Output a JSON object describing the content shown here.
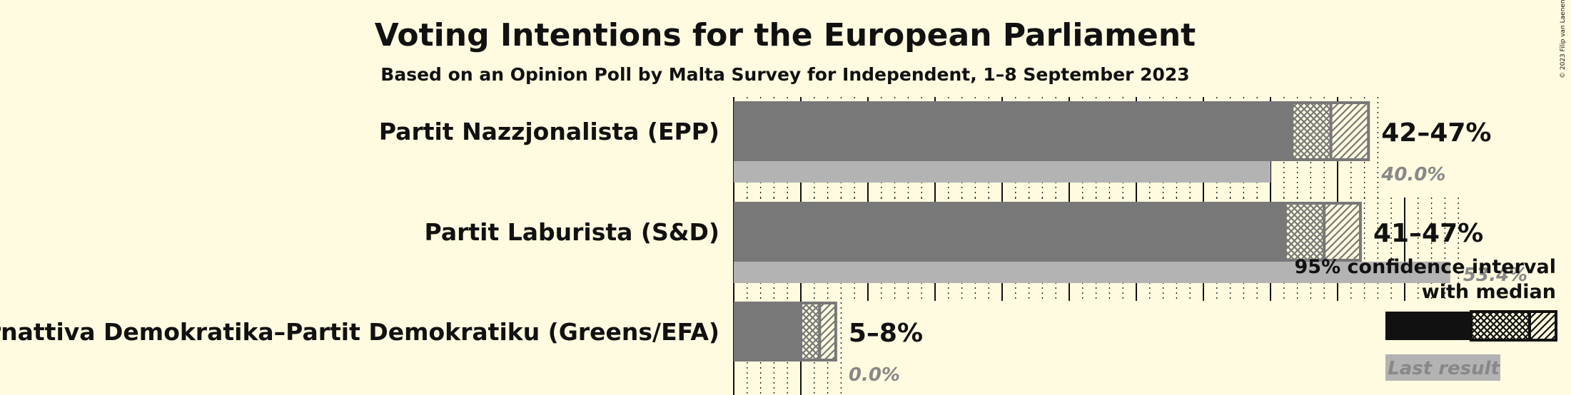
{
  "title": "Voting Intentions for the European Parliament",
  "subtitle": "Based on an Opinion Poll by Malta Survey for Independent, 1–8 September 2023",
  "copyright": "© 2023 Filip van Laenen",
  "colors": {
    "background": "#FFFBE0",
    "bar": "#787878",
    "last_result": "#B3B3B3",
    "legend_bar": "#111111",
    "text": "#111111",
    "muted": "#888888"
  },
  "chart_data": {
    "type": "bar",
    "orientation": "horizontal",
    "title": "Voting Intentions for the European Parliament",
    "subtitle": "Based on an Opinion Poll by Malta Survey for Independent, 1–8 September 2023",
    "unit": "%",
    "categories": [
      "Partit Nazzjonalista (EPP)",
      "Partit Laburista (S&D)",
      "Alternattiva Demokratika–Partit Demokratiku (Greens/EFA)"
    ],
    "series": [
      {
        "name": "95% confidence interval with median",
        "ci_low": [
          41.6,
          41.1,
          5.0
        ],
        "median": [
          44.5,
          44.0,
          6.4
        ],
        "ci_high": [
          47.3,
          46.7,
          7.6
        ],
        "range_labels": [
          "42–47%",
          "41–47%",
          "5–8%"
        ]
      },
      {
        "name": "Last result",
        "values": [
          40.0,
          53.4,
          0.0
        ],
        "value_labels": [
          "40.0%",
          "53.4%",
          "0.0%"
        ]
      }
    ],
    "xlim": [
      0,
      60
    ],
    "gridlines": "major every 5%, minor dotted every 1%",
    "legend": {
      "position": "bottom-right",
      "ci_label_line1": "95% confidence interval",
      "ci_label_line2": "with median",
      "last_label": "Last result"
    }
  }
}
